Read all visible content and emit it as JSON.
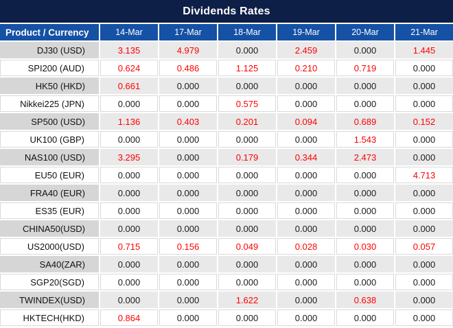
{
  "colors": {
    "title_bg": "#0D1E47",
    "title_text": "#FFFFFF",
    "header_bg": "#1551A5",
    "header_text": "#FFFFFF",
    "stripe_product_bg": "#D6D6D6",
    "stripe_cell_bg": "#E9E9E9",
    "plain_border": "#D9D9D9",
    "value_red": "#FE0000",
    "value_black": "#1A1A1A"
  },
  "chart_data": {
    "type": "table",
    "title": "Dividends Rates",
    "product_column_header": "Product / Currency",
    "date_columns": [
      "14-Mar",
      "17-Mar",
      "18-Mar",
      "19-Mar",
      "20-Mar",
      "21-Mar"
    ],
    "rows": [
      {
        "product": "DJ30 (USD)",
        "values": [
          "3.135",
          "4.979",
          "0.000",
          "2.459",
          "0.000",
          "1.445"
        ]
      },
      {
        "product": "SPI200 (AUD)",
        "values": [
          "0.624",
          "0.486",
          "1.125",
          "0.210",
          "0.719",
          "0.000"
        ]
      },
      {
        "product": "HK50 (HKD)",
        "values": [
          "0.661",
          "0.000",
          "0.000",
          "0.000",
          "0.000",
          "0.000"
        ]
      },
      {
        "product": "Nikkei225 (JPN)",
        "values": [
          "0.000",
          "0.000",
          "0.575",
          "0.000",
          "0.000",
          "0.000"
        ]
      },
      {
        "product": "SP500 (USD)",
        "values": [
          "1.136",
          "0.403",
          "0.201",
          "0.094",
          "0.689",
          "0.152"
        ]
      },
      {
        "product": "UK100 (GBP)",
        "values": [
          "0.000",
          "0.000",
          "0.000",
          "0.000",
          "1.543",
          "0.000"
        ]
      },
      {
        "product": "NAS100 (USD)",
        "values": [
          "3.295",
          "0.000",
          "0.179",
          "0.344",
          "2.473",
          "0.000"
        ]
      },
      {
        "product": "EU50 (EUR)",
        "values": [
          "0.000",
          "0.000",
          "0.000",
          "0.000",
          "0.000",
          "4.713"
        ]
      },
      {
        "product": "FRA40 (EUR)",
        "values": [
          "0.000",
          "0.000",
          "0.000",
          "0.000",
          "0.000",
          "0.000"
        ]
      },
      {
        "product": "ES35 (EUR)",
        "values": [
          "0.000",
          "0.000",
          "0.000",
          "0.000",
          "0.000",
          "0.000"
        ]
      },
      {
        "product": "CHINA50(USD)",
        "values": [
          "0.000",
          "0.000",
          "0.000",
          "0.000",
          "0.000",
          "0.000"
        ]
      },
      {
        "product": "US2000(USD)",
        "values": [
          "0.715",
          "0.156",
          "0.049",
          "0.028",
          "0.030",
          "0.057"
        ]
      },
      {
        "product": "SA40(ZAR)",
        "values": [
          "0.000",
          "0.000",
          "0.000",
          "0.000",
          "0.000",
          "0.000"
        ]
      },
      {
        "product": "SGP20(SGD)",
        "values": [
          "0.000",
          "0.000",
          "0.000",
          "0.000",
          "0.000",
          "0.000"
        ]
      },
      {
        "product": "TWINDEX(USD)",
        "values": [
          "0.000",
          "0.000",
          "1.622",
          "0.000",
          "0.638",
          "0.000"
        ]
      },
      {
        "product": "HKTECH(HKD)",
        "values": [
          "0.864",
          "0.000",
          "0.000",
          "0.000",
          "0.000",
          "0.000"
        ]
      }
    ],
    "style_note": "non-zero values rendered in red, zero values in black; rows alternate gray/white starting gray"
  }
}
